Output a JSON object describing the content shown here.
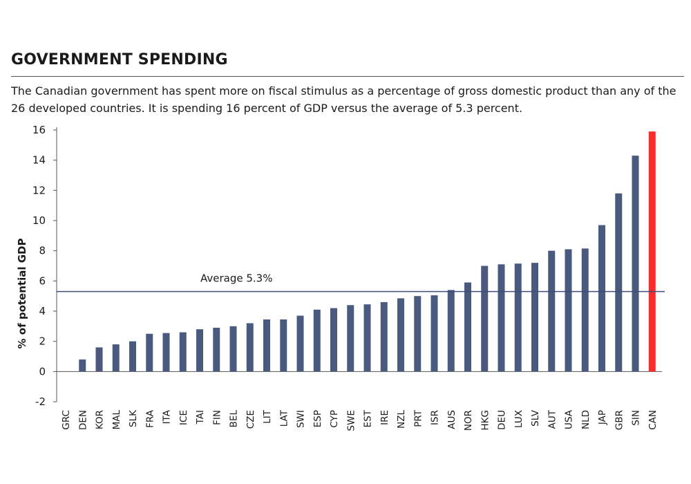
{
  "header": {
    "title": "GOVERNMENT SPENDING",
    "subtitle": "The Canadian government has spent more on fiscal stimulus as a percentage of gross domestic product than any of the 26 developed countries. It is spending 16 percent of GDP versus the average of 5.3 percent."
  },
  "colors": {
    "bar": "#4a5a7e",
    "highlight": "#ff2a2a",
    "average_line": "#3c4e78",
    "axis": "#555555"
  },
  "chart_data": {
    "type": "bar",
    "title": "GOVERNMENT SPENDING",
    "xlabel": "",
    "ylabel": "% of potential GDP",
    "ylim": [
      -2,
      16
    ],
    "yticks": [
      -2,
      0,
      2,
      4,
      6,
      8,
      10,
      12,
      14,
      16
    ],
    "grid": false,
    "categories": [
      "GRC",
      "DEN",
      "KOR",
      "MAL",
      "SLK",
      "FRA",
      "ITA",
      "ICE",
      "TAI",
      "FIN",
      "BEL",
      "CZE",
      "LIT",
      "LAT",
      "SWI",
      "ESP",
      "CYP",
      "SWE",
      "EST",
      "IRE",
      "NZL",
      "PRT",
      "ISR",
      "AUS",
      "NOR",
      "HKG",
      "DEU",
      "LUX",
      "SLV",
      "AUT",
      "USA",
      "NLD",
      "JAP",
      "GBR",
      "SIN",
      "CAN"
    ],
    "values": [
      0,
      0.8,
      1.6,
      1.8,
      2.0,
      2.5,
      2.55,
      2.6,
      2.8,
      2.9,
      3.0,
      3.2,
      3.45,
      3.45,
      3.7,
      4.1,
      4.2,
      4.4,
      4.45,
      4.6,
      4.85,
      5.0,
      5.05,
      5.4,
      5.9,
      7.0,
      7.1,
      7.15,
      7.2,
      8.0,
      8.1,
      8.15,
      9.7,
      11.8,
      14.3,
      15.9
    ],
    "highlight": "CAN",
    "average": {
      "value": 5.3,
      "label": "Average 5.3%"
    }
  }
}
